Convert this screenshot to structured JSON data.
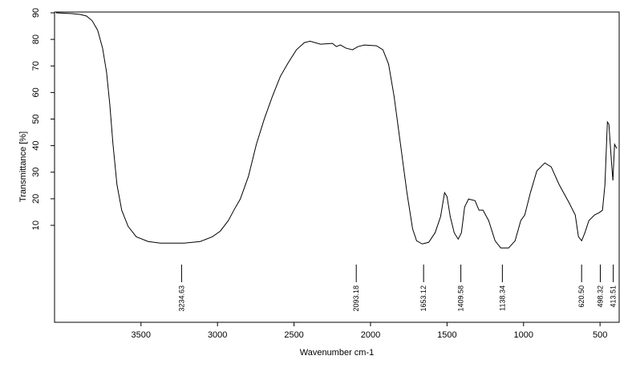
{
  "chart_data": {
    "type": "line",
    "xlabel": "Wavenumber cm-1",
    "ylabel": "Transmittance [%]",
    "color": "#000000",
    "xlim": [
      4065,
      375
    ],
    "ylim": [
      -26.5,
      90.3
    ],
    "xticks": [
      3500,
      3000,
      2500,
      2000,
      1500,
      1000,
      500
    ],
    "yticks": [
      10,
      20,
      30,
      40,
      50,
      60,
      70,
      80,
      90
    ],
    "x": [
      4055,
      3950,
      3898,
      3856,
      3819,
      3783,
      3751,
      3725,
      3704,
      3683,
      3657,
      3626,
      3584,
      3531,
      3453,
      3374,
      3217,
      3113,
      3034,
      2982,
      2929,
      2893,
      2851,
      2798,
      2746,
      2694,
      2641,
      2589,
      2537,
      2484,
      2432,
      2395,
      2327,
      2249,
      2223,
      2197,
      2160,
      2118,
      2081,
      2039,
      1961,
      1919,
      1882,
      1846,
      1804,
      1762,
      1725,
      1699,
      1662,
      1620,
      1578,
      1542,
      1516,
      1500,
      1479,
      1453,
      1427,
      1406,
      1385,
      1359,
      1317,
      1291,
      1265,
      1228,
      1186,
      1149,
      1097,
      1055,
      1018,
      992,
      955,
      913,
      861,
      819,
      767,
      704,
      662,
      641,
      620,
      599,
      573,
      536,
      505,
      484,
      468,
      452,
      442,
      426,
      416,
      405,
      390
    ],
    "values": [
      90,
      89.7,
      89.4,
      88.8,
      87,
      83.4,
      76.7,
      67.6,
      55.6,
      40.5,
      25.3,
      15.7,
      9.6,
      5.7,
      3.9,
      3.3,
      3.3,
      3.9,
      5.7,
      7.8,
      11.8,
      15.7,
      19.9,
      28.4,
      40.5,
      50.1,
      58.6,
      66.1,
      71.3,
      76.1,
      78.8,
      79.3,
      78.2,
      78.5,
      77.3,
      77.9,
      76.7,
      76.1,
      77.3,
      77.9,
      77.6,
      76.1,
      70.7,
      58.6,
      40.5,
      22.3,
      8.7,
      4.2,
      3.0,
      3.6,
      7.2,
      13.3,
      22.3,
      20.8,
      13.3,
      7.2,
      4.8,
      7.2,
      16.9,
      19.9,
      19.3,
      15.7,
      15.7,
      11.8,
      4.2,
      1.5,
      1.5,
      4.2,
      11.8,
      13.9,
      22.3,
      30.5,
      33.5,
      32.0,
      25.3,
      18.7,
      13.9,
      5.7,
      4.2,
      7.2,
      11.8,
      13.9,
      14.8,
      15.7,
      25.3,
      48.9,
      48.0,
      34.4,
      26.9,
      40.5,
      38.9
    ],
    "annotations": {
      "x": [
        3234.63,
        2093.18,
        1653.12,
        1409.58,
        1138.34,
        620.5,
        498.32,
        413.51
      ],
      "value_labels": [
        "3234.63",
        "2093.18",
        "1653.12",
        "1409.58",
        "1138.34",
        "620.50",
        "498.32",
        "413.51"
      ]
    }
  }
}
